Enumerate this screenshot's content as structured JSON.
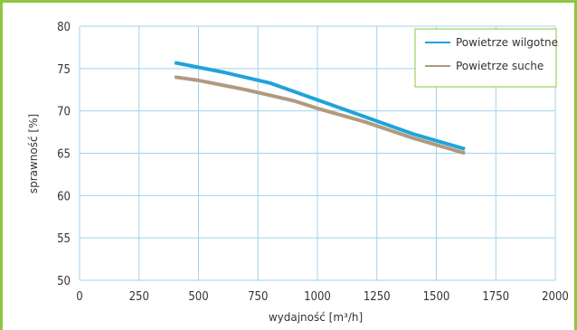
{
  "chart_data": {
    "type": "line",
    "xlabel": "wydajność [m³/h]",
    "ylabel": "sprawność [%]",
    "xlim": [
      0,
      2000
    ],
    "ylim": [
      50,
      80
    ],
    "xticks": [
      0,
      250,
      500,
      750,
      1000,
      1250,
      1500,
      1750,
      2000
    ],
    "yticks": [
      50,
      55,
      60,
      65,
      70,
      75,
      80
    ],
    "grid": true,
    "legend_position": "top-right",
    "series": [
      {
        "name": "Powietrze wilgotne",
        "color": "#1fa3d9",
        "x": [
          400,
          600,
          800,
          1000,
          1200,
          1400,
          1620
        ],
        "y": [
          75.7,
          74.6,
          73.3,
          71.3,
          69.3,
          67.3,
          65.5
        ]
      },
      {
        "name": "Powietrze suche",
        "color": "#b09a7e",
        "x": [
          400,
          500,
          700,
          900,
          1000,
          1200,
          1400,
          1620
        ],
        "y": [
          74.0,
          73.6,
          72.5,
          71.2,
          70.3,
          68.7,
          66.8,
          65.0
        ]
      }
    ]
  },
  "colors": {
    "frame": "#8dc63f",
    "grid": "#9fd4ee",
    "legend_border": "#8dc63f"
  }
}
